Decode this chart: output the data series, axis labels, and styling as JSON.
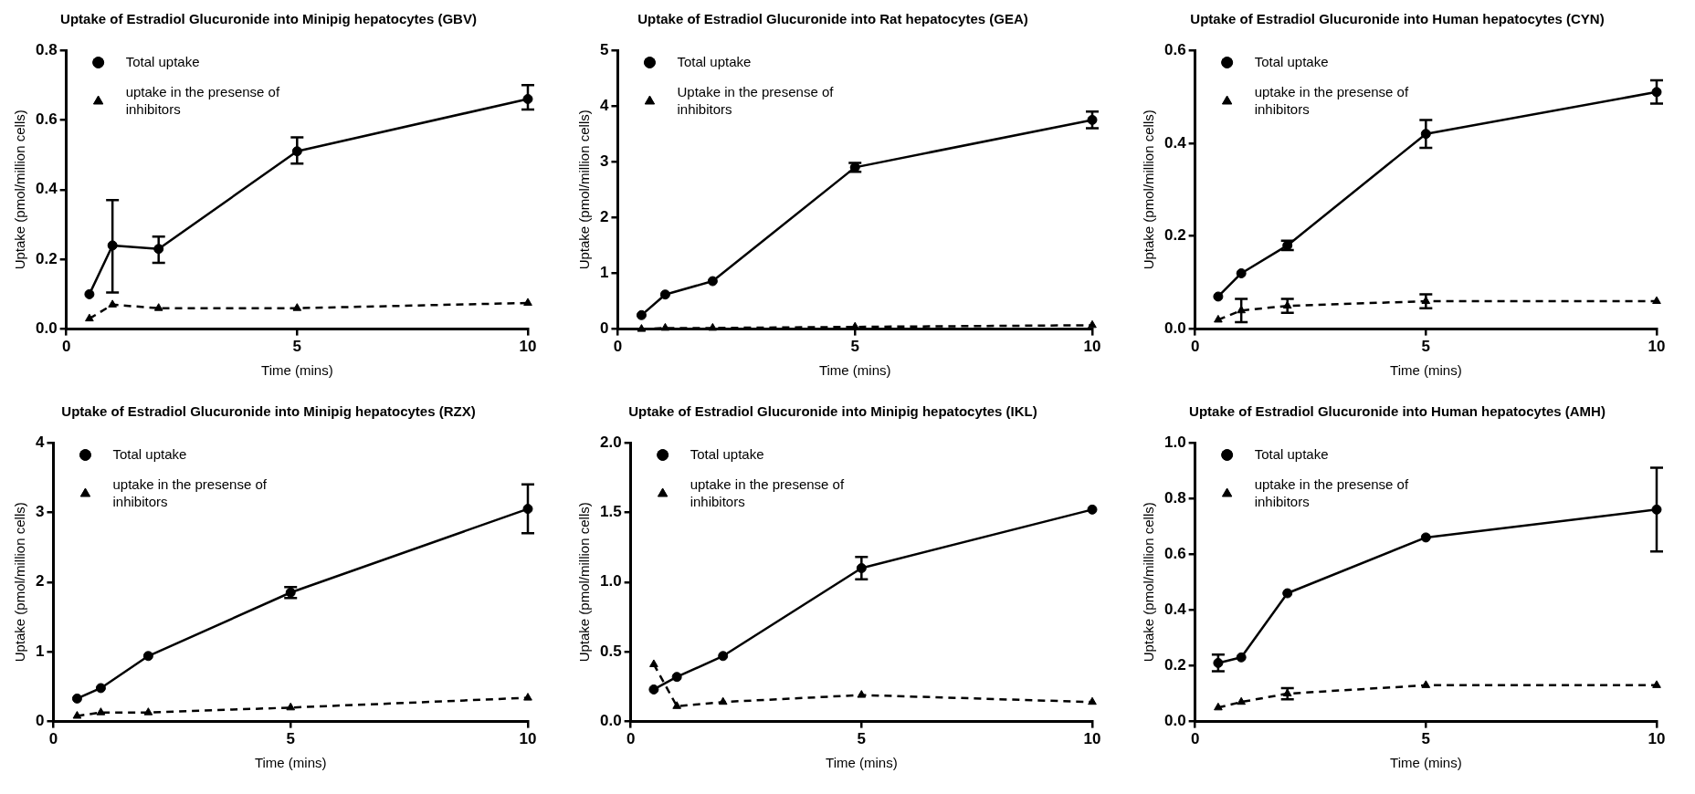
{
  "chart_data": [
    {
      "type": "line",
      "title": "Uptake of Estradiol Glucuronide into Minipig hepatocytes (GBV)",
      "xlabel": "Time (mins)",
      "ylabel": "Uptake (pmol/million cells)",
      "x": [
        0.5,
        1,
        2,
        5,
        10
      ],
      "xlim": [
        0,
        10
      ],
      "xticks": [
        0,
        5,
        10
      ],
      "ylim": [
        0,
        0.8
      ],
      "yticks": [
        {
          "value": 0,
          "label": "0.0"
        },
        0.2,
        0.4,
        0.6,
        0.8
      ],
      "grid": false,
      "legend": "top left",
      "series": [
        {
          "name": "Total uptake",
          "color": "#000000",
          "marker": "circle",
          "line_style": "solid",
          "values": [
            0.1,
            0.24,
            0.23,
            0.51,
            0.66
          ],
          "errors": [
            null,
            [
              0.105,
              0.37
            ],
            [
              0.19,
              0.265
            ],
            [
              0.475,
              0.55
            ],
            [
              0.63,
              0.7
            ]
          ]
        },
        {
          "name": "uptake in the presense of inhibitors",
          "color": "#000000",
          "marker": "triangle",
          "line_style": "dashed",
          "values": [
            0.03,
            0.07,
            0.06,
            0.06,
            0.075
          ]
        }
      ]
    },
    {
      "type": "line",
      "title": "Uptake of Estradiol Glucuronide into Rat hepatocytes (GEA)",
      "xlabel": "Time (mins)",
      "ylabel": "Uptake (pmol/million cells)",
      "x": [
        0.5,
        1,
        2,
        5,
        10
      ],
      "xlim": [
        0,
        10
      ],
      "xticks": [
        0,
        5,
        10
      ],
      "ylim": [
        0,
        5
      ],
      "yticks": [
        0,
        1,
        2,
        3,
        4,
        5
      ],
      "grid": false,
      "legend": "top left",
      "series": [
        {
          "name": "Total uptake",
          "color": "#000000",
          "marker": "circle",
          "line_style": "solid",
          "values": [
            0.25,
            0.62,
            0.86,
            2.9,
            3.75
          ],
          "errors": [
            null,
            null,
            null,
            0.08,
            0.15
          ]
        },
        {
          "name": "Uptake in the presense of inhibitors",
          "color": "#000000",
          "marker": "triangle",
          "line_style": "dashed",
          "values": [
            0,
            0.02,
            0.02,
            0.04,
            0.07
          ]
        }
      ]
    },
    {
      "type": "line",
      "title": "Uptake of Estradiol Glucuronide into Human hepatocytes (CYN)",
      "xlabel": "Time (mins)",
      "ylabel": "Uptake (pmol/million cells)",
      "x": [
        0.5,
        1,
        2,
        5,
        10
      ],
      "xlim": [
        0,
        10
      ],
      "xticks": [
        0,
        5,
        10
      ],
      "ylim": [
        0,
        0.6
      ],
      "yticks": [
        {
          "value": 0,
          "label": "0.0"
        },
        0.2,
        0.4,
        0.6
      ],
      "grid": false,
      "legend": "top left",
      "series": [
        {
          "name": "Total uptake",
          "color": "#000000",
          "marker": "circle",
          "line_style": "solid",
          "values": [
            0.07,
            0.12,
            0.18,
            0.42,
            0.51
          ],
          "errors": [
            null,
            null,
            0.01,
            0.03,
            0.025
          ]
        },
        {
          "name": "uptake in the presense of inhibitors",
          "color": "#000000",
          "marker": "triangle",
          "line_style": "dashed",
          "values": [
            0.02,
            0.04,
            0.05,
            0.06,
            0.06
          ],
          "errors": [
            null,
            0.025,
            0.015,
            0.015,
            null
          ]
        }
      ]
    },
    {
      "type": "line",
      "title": "Uptake of Estradiol Glucuronide into Minipig hepatocytes (RZX)",
      "xlabel": "Time (mins)",
      "ylabel": "Uptake (pmol/million cells)",
      "x": [
        0.5,
        1,
        2,
        5,
        10
      ],
      "xlim": [
        0,
        10
      ],
      "xticks": [
        0,
        5,
        10
      ],
      "ylim": [
        0,
        4
      ],
      "yticks": [
        0,
        1,
        2,
        3,
        4
      ],
      "grid": false,
      "legend": "top left",
      "series": [
        {
          "name": "Total uptake",
          "color": "#000000",
          "marker": "circle",
          "line_style": "solid",
          "values": [
            0.33,
            0.48,
            0.94,
            1.85,
            3.05
          ],
          "errors": [
            null,
            null,
            null,
            0.08,
            0.35
          ]
        },
        {
          "name": "uptake in the presense of inhibitors",
          "color": "#000000",
          "marker": "triangle",
          "line_style": "dashed",
          "values": [
            0.08,
            0.13,
            0.13,
            0.2,
            0.34
          ]
        }
      ]
    },
    {
      "type": "line",
      "title": "Uptake of Estradiol Glucuronide into Minipig hepatocytes (IKL)",
      "xlabel": "Time (mins)",
      "ylabel": "Uptake (pmol/million cells)",
      "x": [
        0.5,
        1,
        2,
        5,
        10
      ],
      "xlim": [
        0,
        10
      ],
      "xticks": [
        0,
        5,
        10
      ],
      "ylim": [
        0,
        2
      ],
      "yticks": [
        {
          "value": 0,
          "label": "0.0"
        },
        0.5,
        {
          "value": 1,
          "label": "1.0"
        },
        1.5,
        {
          "value": 2,
          "label": "2.0"
        }
      ],
      "grid": false,
      "legend": "top left",
      "series": [
        {
          "name": "Total uptake",
          "color": "#000000",
          "marker": "circle",
          "line_style": "solid",
          "values": [
            0.23,
            0.32,
            0.47,
            1.1,
            1.52
          ],
          "errors": [
            null,
            null,
            null,
            0.08,
            null
          ]
        },
        {
          "name": "uptake in the presense of inhibitors",
          "color": "#000000",
          "marker": "triangle",
          "line_style": "dashed",
          "values": [
            0.41,
            0.11,
            0.14,
            0.19,
            0.14
          ]
        }
      ]
    },
    {
      "type": "line",
      "title": "Uptake of Estradiol Glucuronide into Human hepatocytes (AMH)",
      "xlabel": "Time (mins)",
      "ylabel": "Uptake (pmol/million cells)",
      "x": [
        0.5,
        1,
        2,
        5,
        10
      ],
      "xlim": [
        0,
        10
      ],
      "xticks": [
        0,
        5,
        10
      ],
      "ylim": [
        0,
        1
      ],
      "yticks": [
        {
          "value": 0,
          "label": "0.0"
        },
        0.2,
        0.4,
        0.6,
        0.8,
        {
          "value": 1,
          "label": "1.0"
        }
      ],
      "grid": false,
      "legend": "top left",
      "series": [
        {
          "name": "Total uptake",
          "color": "#000000",
          "marker": "circle",
          "line_style": "solid",
          "values": [
            0.21,
            0.23,
            0.46,
            0.66,
            0.76
          ],
          "errors": [
            0.03,
            null,
            null,
            null,
            0.15
          ]
        },
        {
          "name": "uptake in the presense of inhibitors",
          "color": "#000000",
          "marker": "triangle",
          "line_style": "dashed",
          "values": [
            0.05,
            0.07,
            0.1,
            0.13,
            0.13
          ],
          "errors": [
            null,
            null,
            0.02,
            null,
            null
          ]
        }
      ]
    }
  ]
}
